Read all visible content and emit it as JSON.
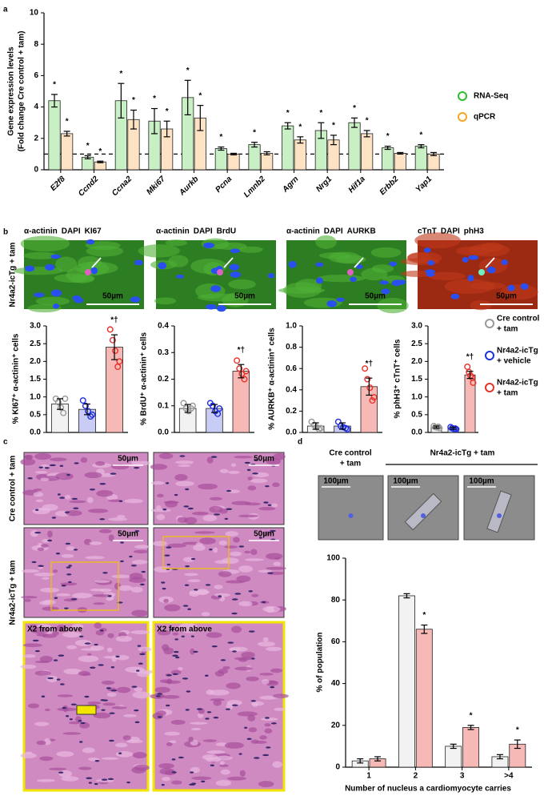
{
  "panel_labels": [
    "a",
    "b",
    "c",
    "d"
  ],
  "chart_data": [
    {
      "type": "bar",
      "ylabel": [
        "Gene expression levels",
        "(Fold change Cre control + tam)"
      ],
      "categories": [
        "E2f8",
        "Ccnd2",
        "Ccna2",
        "Mki67",
        "Aurkb",
        "Pcna",
        "Lmnb2",
        "Agrn",
        "Nrg1",
        "Hif1a",
        "Erbb2",
        "Yap1"
      ],
      "series": [
        {
          "name": "RNA-Seq",
          "color": "#2bbf2b",
          "fill": "#c9efc5",
          "values": [
            4.4,
            0.8,
            4.4,
            3.1,
            4.6,
            1.35,
            1.6,
            2.8,
            2.5,
            3.0,
            1.4,
            1.5
          ],
          "errors": [
            0.4,
            0.1,
            1.1,
            0.8,
            1.1,
            0.1,
            0.15,
            0.2,
            0.5,
            0.3,
            0.1,
            0.1
          ],
          "annotations": [
            "*",
            "*",
            "*",
            "*",
            "*",
            "*",
            "*",
            "*",
            "*",
            "*",
            "*",
            "*"
          ]
        },
        {
          "name": "qPCR",
          "color": "#f5a623",
          "fill": "#fde3c4",
          "values": [
            2.3,
            0.5,
            3.2,
            2.6,
            3.3,
            1.0,
            1.05,
            1.9,
            1.9,
            2.3,
            1.05,
            1.0
          ],
          "errors": [
            0.15,
            0.05,
            0.6,
            0.5,
            0.8,
            0.05,
            0.1,
            0.2,
            0.3,
            0.2,
            0.05,
            0.1
          ],
          "annotations": [
            "*",
            "*",
            "*",
            "*",
            "*",
            null,
            null,
            "*",
            "*",
            "*",
            null,
            null
          ]
        }
      ],
      "ylim": [
        0,
        10
      ],
      "yticks": [
        0,
        2,
        4,
        6,
        8,
        10
      ],
      "hline": 1
    },
    {
      "type": "bar",
      "ylabel": "% KI67⁺ α-actinin⁺ cells",
      "values": [
        0.8,
        0.65,
        2.4
      ],
      "errors": [
        0.15,
        0.15,
        0.35
      ],
      "points": [
        [
          0.95,
          0.85,
          0.7,
          0.55,
          0.95
        ],
        [
          0.9,
          0.75,
          0.6,
          0.45,
          0.5
        ],
        [
          2.9,
          2.6,
          2.3,
          1.85,
          2.0
        ]
      ],
      "annotations": [
        null,
        null,
        "*†"
      ],
      "ylim": [
        0,
        3
      ],
      "yticks": [
        {
          "value": 0,
          "label": "0.0"
        },
        {
          "value": 0.5,
          "label": "0.5"
        },
        {
          "value": 1,
          "label": "1.0"
        },
        {
          "value": 1.5,
          "label": "1.5"
        },
        {
          "value": 2,
          "label": "2.0"
        },
        {
          "value": 2.5,
          "label": "2.5"
        },
        {
          "value": 3,
          "label": "3.0"
        }
      ]
    },
    {
      "type": "bar",
      "ylabel": "% BrdU⁺ α-actinin⁺ cells",
      "values": [
        0.09,
        0.09,
        0.23
      ],
      "errors": [
        0.015,
        0.015,
        0.025
      ],
      "points": [
        [
          0.11,
          0.09,
          0.08,
          0.09,
          0.1
        ],
        [
          0.11,
          0.1,
          0.08,
          0.07,
          0.09
        ],
        [
          0.27,
          0.24,
          0.22,
          0.2,
          0.23
        ]
      ],
      "annotations": [
        null,
        null,
        "*†"
      ],
      "ylim": [
        0,
        0.4
      ],
      "yticks": [
        {
          "value": 0,
          "label": "0.0"
        },
        0.1,
        0.2,
        0.3,
        0.4
      ]
    },
    {
      "type": "bar",
      "ylabel": "% AURKB⁺ α-actinin⁺ cells",
      "values": [
        0.06,
        0.06,
        0.43
      ],
      "errors": [
        0.03,
        0.03,
        0.08
      ],
      "points": [
        [
          0.1,
          0.07,
          0.05,
          0.03,
          0.04
        ],
        [
          0.1,
          0.06,
          0.05,
          0.04,
          0.03
        ],
        [
          0.6,
          0.5,
          0.42,
          0.3,
          0.33
        ]
      ],
      "annotations": [
        null,
        null,
        "*†"
      ],
      "ylim": [
        0,
        1
      ],
      "yticks": [
        {
          "value": 0,
          "label": "0.0"
        },
        0.2,
        0.4,
        0.6,
        0.8,
        {
          "value": 1,
          "label": "1.0"
        }
      ]
    },
    {
      "type": "bar",
      "ylabel": "% phH3⁺ cTnT⁺ cells",
      "values": [
        0.15,
        0.12,
        1.62
      ],
      "errors": [
        0.03,
        0.03,
        0.1
      ],
      "points": [
        [
          0.18,
          0.15,
          0.14,
          0.16,
          0.12
        ],
        [
          0.15,
          0.12,
          0.1,
          0.11,
          0.09
        ],
        [
          1.85,
          1.7,
          1.6,
          1.55,
          1.4
        ]
      ],
      "annotations": [
        null,
        null,
        "*†"
      ],
      "ylim": [
        0,
        3
      ],
      "yticks": [
        {
          "value": 0,
          "label": "0.0"
        },
        0.5,
        {
          "value": 1,
          "label": "1.0"
        },
        1.5,
        {
          "value": 2,
          "label": "2.0"
        },
        2.5,
        {
          "value": 3,
          "label": "3.0"
        }
      ]
    },
    {
      "type": "bar",
      "xlabel": "Number of nucleus a cardiomyocyte carries",
      "ylabel": "% of population",
      "categories": [
        "1",
        "2",
        "3",
        ">4"
      ],
      "series": [
        {
          "color": "#888888",
          "fill": "#f2f2f2",
          "values": [
            3,
            82,
            10,
            5
          ],
          "errors": [
            1,
            1,
            1,
            1
          ]
        },
        {
          "color": "#e8302a",
          "fill": "#f7b9b5",
          "values": [
            4,
            66,
            19,
            11
          ],
          "errors": [
            1,
            2,
            1,
            2
          ],
          "annotations": [
            null,
            "*",
            "*",
            "*"
          ]
        }
      ],
      "ylim": [
        0,
        100
      ],
      "yticks": [
        0,
        20,
        40,
        60,
        80,
        100
      ]
    }
  ],
  "b_colors": [
    "#9a9a9a",
    "#1f2fe0",
    "#e8302a"
  ],
  "b_fills": [
    "#f2f2f2",
    "#c9cdf5",
    "#f7b9b5"
  ],
  "b_legend": [
    [
      "Cre control",
      "+ tam"
    ],
    [
      "Nr4a2-icTg",
      "+ vehicle"
    ],
    [
      "Nr4a2-icTg",
      "+ tam"
    ]
  ],
  "b_row_label": "Nr4a2-icTg + tam",
  "b_images": [
    {
      "stains": [
        {
          "text": "α-actinin",
          "color": "#1fa83a"
        },
        {
          "text": "DAPI",
          "color": "#1f2fe0"
        },
        {
          "text": "KI67",
          "color": "#e8302a"
        }
      ],
      "scale": "50µm"
    },
    {
      "stains": [
        {
          "text": "α-actinin",
          "color": "#1fa83a"
        },
        {
          "text": "DAPI",
          "color": "#1f2fe0"
        },
        {
          "text": "BrdU",
          "color": "#e8302a"
        }
      ],
      "scale": "50µm"
    },
    {
      "stains": [
        {
          "text": "α-actinin",
          "color": "#1fa83a"
        },
        {
          "text": "DAPI",
          "color": "#1f2fe0"
        },
        {
          "text": "AURKB",
          "color": "#e8302a"
        }
      ],
      "scale": "50µm"
    },
    {
      "stains": [
        {
          "text": "cTnT",
          "color": "#e8302a"
        },
        {
          "text": "DAPI",
          "color": "#1f2fe0"
        },
        {
          "text": "phH3",
          "color": "#1fa83a"
        }
      ],
      "scale": "50µm"
    }
  ],
  "c": {
    "row_labels": [
      "Cre control + tam",
      "Nr4a2-icTg + tam"
    ],
    "scales": [
      "50µm",
      "50µm",
      "50µm",
      "50µm"
    ],
    "zoom_labels": [
      "X2 from above",
      "X2 from above"
    ]
  },
  "d": {
    "headers": [
      [
        "Cre control",
        "+ tam"
      ],
      [
        "Nr4a2-icTg + tam"
      ]
    ],
    "scales": [
      "100µm",
      "100µm",
      "100µm"
    ]
  }
}
